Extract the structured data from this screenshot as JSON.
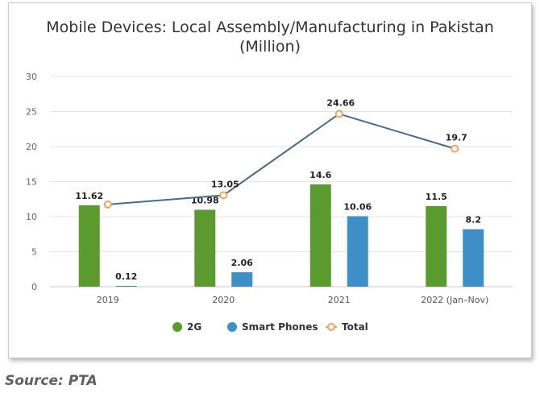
{
  "chart_data": {
    "type": "bar",
    "title": "Mobile Devices: Local Assembly/Manufacturing in Pakistan",
    "subtitle": "(Million)",
    "categories": [
      "2019",
      "2020",
      "2021",
      "2022 (Jan–Nov)"
    ],
    "series": [
      {
        "name": "2G",
        "type": "bar",
        "values": [
          11.62,
          10.98,
          14.6,
          11.5
        ],
        "labels": [
          "11.62",
          "10.98",
          "14.6",
          "11.5"
        ],
        "color": "#5b9a2e"
      },
      {
        "name": "Smart Phones",
        "type": "bar",
        "values": [
          0.12,
          2.06,
          10.06,
          8.2
        ],
        "labels": [
          "0.12",
          "2.06",
          "10.06",
          "8.2"
        ],
        "color": "#3d8fc7"
      },
      {
        "name": "Total",
        "type": "line",
        "values": [
          11.74,
          13.05,
          24.66,
          19.7
        ],
        "labels": [
          "",
          "13.05",
          "24.66",
          "19.7"
        ],
        "color": "#4a6a8c",
        "marker_color": "#f5a25d"
      }
    ],
    "ylim": [
      0,
      30
    ],
    "yticks": [
      0,
      5,
      10,
      15,
      20,
      25,
      30
    ],
    "grid": true,
    "legend_position": "bottom"
  },
  "source": "Source: PTA"
}
